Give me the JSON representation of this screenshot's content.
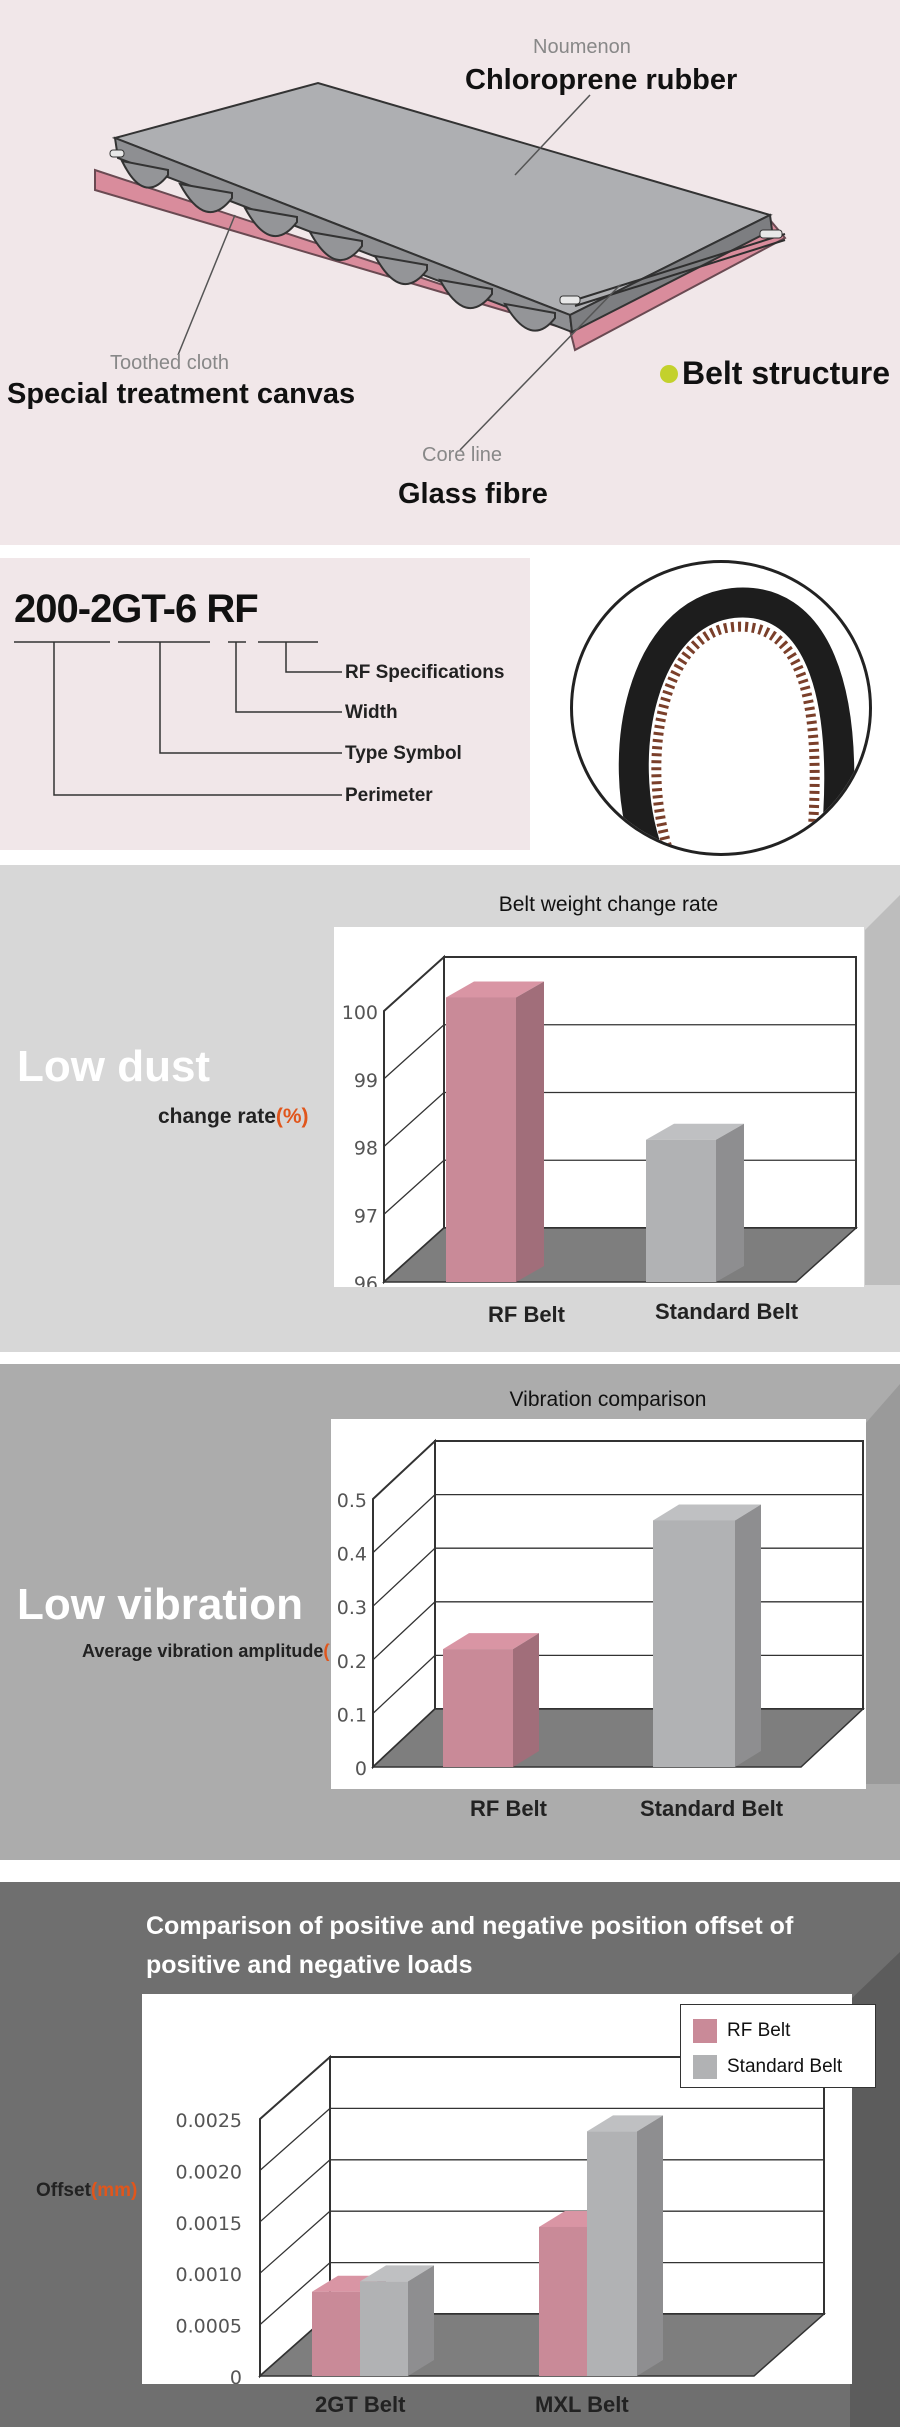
{
  "structure": {
    "noumenon_label": "Noumenon",
    "noumenon_value": "Chloroprene rubber",
    "toothed_label": "Toothed cloth",
    "toothed_value": "Special treatment canvas",
    "core_label": "Core line",
    "core_value": "Glass fibre",
    "heading": "Belt structure",
    "accent_color": "#c3d12c"
  },
  "code": {
    "parts": [
      "200-",
      "2GT-",
      "6",
      "RF"
    ],
    "legend": [
      "RF Specifications",
      "Width",
      "Type Symbol",
      "Perimeter"
    ]
  },
  "dust": {
    "heading": "Low dust",
    "sub_label": "change rate",
    "sub_unit": "(%)",
    "chart_data": {
      "type": "bar",
      "title": "Belt weight change rate",
      "categories": [
        "RF Belt",
        "Standard Belt"
      ],
      "values": [
        100.2,
        98.1
      ],
      "ylim": [
        96,
        100
      ],
      "yticks": [
        "96",
        "97",
        "98",
        "99",
        "100"
      ],
      "colors": [
        "#c98a98",
        "#b1b2b4"
      ],
      "grid": true
    }
  },
  "vibration": {
    "heading": "Low vibration",
    "sub_label": "Average vibration amplitude",
    "sub_unit": "(V",
    "chart_data": {
      "type": "bar",
      "title": "Vibration comparison",
      "categories": [
        "RF Belt",
        "Standard Belt"
      ],
      "values": [
        0.22,
        0.46
      ],
      "ylim": [
        0,
        0.5
      ],
      "yticks": [
        "0",
        "0.1",
        "0.2",
        "0.3",
        "0.4",
        "0.5"
      ],
      "colors": [
        "#c98a98",
        "#b1b2b4"
      ],
      "grid": true
    }
  },
  "offset": {
    "title_line1": "Comparison of positive and negative position offset of",
    "title_line2": "positive and negative loads",
    "ylabel": "Offset",
    "yunit": "(mm)",
    "chart_data": {
      "type": "bar",
      "title": "Comparison of positive and negative position offset of positive and negative loads",
      "ylabel": "Offset(mm)",
      "categories": [
        "2GT Belt",
        "MXL Belt"
      ],
      "series": [
        {
          "name": "RF Belt",
          "values": [
            0.00082,
            0.00145
          ]
        },
        {
          "name": "Standard Belt",
          "values": [
            0.00092,
            0.00238
          ]
        }
      ],
      "ylim": [
        0,
        0.0025
      ],
      "yticks": [
        "0",
        "0.0005",
        "0.0010",
        "0.0015",
        "0.0020",
        "0.0025"
      ],
      "colors": [
        "#c98a98",
        "#b1b2b4"
      ],
      "legend": "top-right",
      "grid": true
    }
  }
}
